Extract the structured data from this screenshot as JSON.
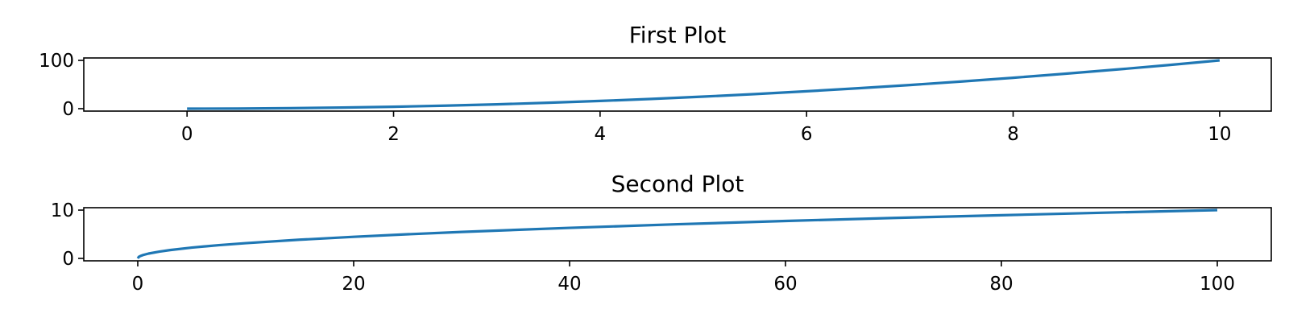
{
  "chart_data": [
    {
      "type": "line",
      "title": "First Plot",
      "xlabel": "",
      "ylabel": "",
      "xlim": [
        -1,
        10.5
      ],
      "ylim": [
        -5,
        105
      ],
      "xticks": [
        0,
        2,
        4,
        6,
        8,
        10
      ],
      "xtick_labels": [
        "0",
        "2",
        "4",
        "6",
        "8",
        "10"
      ],
      "yticks": [
        0,
        100
      ],
      "ytick_labels": [
        "0",
        "100"
      ],
      "grid": false,
      "legend": "none",
      "series": [
        {
          "color": "#1f77b4",
          "x": [
            0,
            0.5,
            1,
            1.5,
            2,
            2.5,
            3,
            3.5,
            4,
            4.5,
            5,
            5.5,
            6,
            6.5,
            7,
            7.5,
            8,
            8.5,
            9,
            9.5,
            10
          ],
          "y": [
            0,
            0.25,
            1,
            2.25,
            4,
            6.25,
            9,
            12.25,
            16,
            20.25,
            25,
            30.25,
            36,
            42.25,
            49,
            56.25,
            64,
            72.25,
            81,
            90.25,
            100
          ]
        }
      ]
    },
    {
      "type": "line",
      "title": "Second Plot",
      "xlabel": "",
      "ylabel": "",
      "xlim": [
        -5,
        105
      ],
      "ylim": [
        -0.5,
        10.5
      ],
      "xticks": [
        0,
        20,
        40,
        60,
        80,
        100
      ],
      "xtick_labels": [
        "0",
        "20",
        "40",
        "60",
        "80",
        "100"
      ],
      "yticks": [
        0,
        10
      ],
      "ytick_labels": [
        "0",
        "10"
      ],
      "grid": false,
      "legend": "none",
      "series": [
        {
          "color": "#1f77b4",
          "x": [
            0,
            0.1,
            0.25,
            0.5,
            1,
            2,
            3,
            5,
            7.5,
            10,
            15,
            20,
            25,
            30,
            40,
            50,
            60,
            70,
            80,
            90,
            100
          ],
          "y": [
            0,
            0.32,
            0.5,
            0.71,
            1,
            1.41,
            1.73,
            2.24,
            2.74,
            3.16,
            3.87,
            4.47,
            5,
            5.48,
            6.32,
            7.07,
            7.75,
            8.37,
            8.94,
            9.49,
            10
          ]
        }
      ]
    }
  ]
}
